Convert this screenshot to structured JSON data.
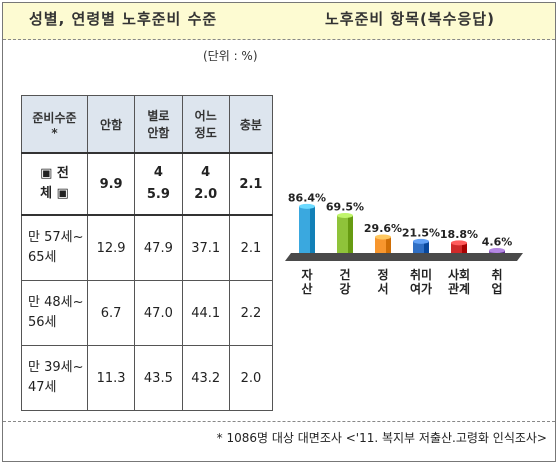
{
  "header": {
    "left_title": "성별, 연령별 노후준비 수준",
    "right_title": "노후준비 항목(복수응답)"
  },
  "unit_label": "(단위 : %)",
  "table": {
    "columns": [
      "준비수준\n*",
      "안함",
      "별로\n안함",
      "어느\n정도",
      "충분"
    ],
    "rows": [
      {
        "label": "▣ 전\n체 ▣",
        "values": [
          "9.9",
          "4\n5.9",
          "4\n2.0",
          "2.1"
        ]
      },
      {
        "label": "만 57세~\n65세",
        "values": [
          "12.9",
          "47.9",
          "37.1",
          "2.1"
        ]
      },
      {
        "label": "만 48세~\n56세",
        "values": [
          "6.7",
          "47.0",
          "44.1",
          "2.2"
        ]
      },
      {
        "label": "만 39세~\n47세",
        "values": [
          "11.3",
          "43.5",
          "43.2",
          "2.0"
        ]
      }
    ]
  },
  "chart_data": {
    "type": "bar",
    "title": "노후준비 항목(복수응답)",
    "categories": [
      "자산",
      "건강",
      "정서",
      "취미여가",
      "사회관계",
      "취업"
    ],
    "category_labels": [
      [
        "자",
        "산"
      ],
      [
        "건",
        "강"
      ],
      [
        "정",
        "서"
      ],
      [
        "취미",
        "여가"
      ],
      [
        "사회",
        "관계"
      ],
      [
        "취",
        "업"
      ]
    ],
    "values": [
      86.4,
      69.5,
      29.6,
      21.5,
      18.8,
      4.6
    ],
    "value_labels": [
      "86.4%",
      "69.5%",
      "29.6%",
      "21.5%",
      "18.8%",
      "4.6%"
    ],
    "bar_colors": [
      "#3aa8df",
      "#8fc33a",
      "#f7962e",
      "#2f6fc4",
      "#cf2a2a",
      "#8255b0"
    ],
    "floor_color": "#4a4a4a",
    "ylim": [
      0,
      100
    ]
  },
  "footnote": "* 1086명 대상 대면조사 <'11. 복지부 저출산.고령화 인식조사>"
}
